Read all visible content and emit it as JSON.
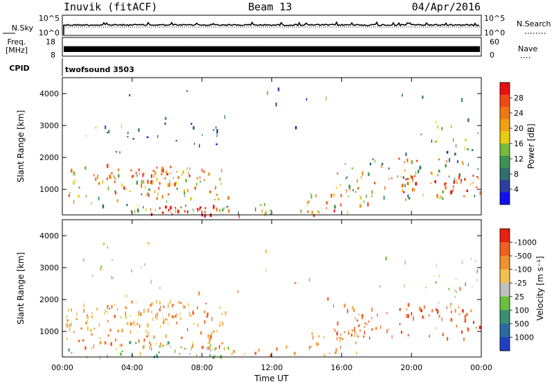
{
  "header": {
    "site": "Inuvik (fitACF)",
    "beam": "Beam 13",
    "date": "04/Apr/2016"
  },
  "top_panels": {
    "nsky": {
      "label": "N.Sky",
      "ticks": [
        "10^5",
        "10^0"
      ]
    },
    "nsearch": {
      "label": "N.Search",
      "ticks": [
        "10^5",
        "10^0"
      ]
    },
    "freq": {
      "label": "Freq.",
      "unit": "[MHz]",
      "ticks": [
        "18",
        "8"
      ]
    },
    "nave": {
      "label": "Nave",
      "ticks": [
        "60",
        "0"
      ]
    },
    "cpid": {
      "label": "CPID",
      "value": "twofsound 3503"
    }
  },
  "chart_data": [
    {
      "type": "heatmap",
      "name": "power",
      "ylabel": "Slant Range [km]",
      "xlabel": "",
      "y_ticks": [
        1000,
        2000,
        3000,
        4000
      ],
      "ylim": [
        200,
        4500
      ],
      "colorbar": {
        "label": "Power [dB]",
        "ticks": [
          "4",
          "8",
          "12",
          "16",
          "20",
          "24",
          "28"
        ],
        "colors": [
          "#1010f0",
          "#2a3fa0",
          "#2f6f6c",
          "#3f9350",
          "#78ba3c",
          "#e8cc10",
          "#f0a012",
          "#f07814",
          "#f04a14",
          "#e81010"
        ]
      }
    },
    {
      "type": "heatmap",
      "name": "velocity",
      "ylabel": "Slant Range [km]",
      "xlabel": "Time UT",
      "x_ticks": [
        "00:00",
        "04:00",
        "08:00",
        "12:00",
        "16:00",
        "20:00",
        "00:00"
      ],
      "y_ticks": [
        1000,
        2000,
        3000,
        4000
      ],
      "ylim": [
        200,
        4500
      ],
      "colorbar": {
        "label": "Velocity [m s⁻¹]",
        "ticks": [
          "1000",
          "500",
          "100",
          "25",
          "-25",
          "-100",
          "-500",
          "-1000"
        ],
        "colors": [
          "#2040c0",
          "#2a6aa0",
          "#3a9070",
          "#6ac040",
          "#c0c0c0",
          "#f0c050",
          "#f09030",
          "#f06020",
          "#e82010"
        ]
      }
    }
  ]
}
